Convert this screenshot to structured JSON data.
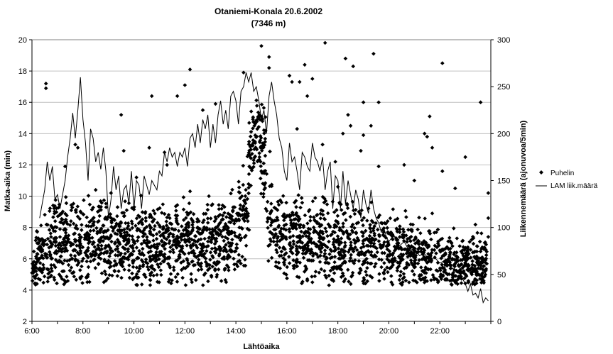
{
  "chart_data": {
    "type": "scatter",
    "title": "Otaniemi-Konala 20.6.2002",
    "subtitle": "(7346 m)",
    "xlabel": "Lähtöaika",
    "ylabel": "Matka-aika (min)",
    "y2label": "Liikennemäärä (ajonuvoa/5min)",
    "x_ticks": [
      "6:00",
      "8:00",
      "10:00",
      "12:00",
      "14:00",
      "16:00",
      "18:00",
      "20:00",
      "22:00"
    ],
    "xlim": [
      6,
      24
    ],
    "ylim": [
      2,
      20
    ],
    "y_ticks": [
      2,
      4,
      6,
      8,
      10,
      12,
      14,
      16,
      18,
      20
    ],
    "y2lim": [
      0,
      300
    ],
    "y2_ticks": [
      0,
      50,
      100,
      150,
      200,
      250,
      300
    ],
    "grid": true,
    "legend_position": "right",
    "colors": {
      "grid": "#c0c0c0",
      "points": "#000000",
      "line": "#000000",
      "frame": "#808080"
    },
    "series": [
      {
        "name": "Puhelin",
        "kind": "scatter",
        "axis": "left",
        "background_profile": [
          [
            6.0,
            5.6,
            1.1
          ],
          [
            6.5,
            6.5,
            1.3
          ],
          [
            7.0,
            7.0,
            1.6
          ],
          [
            8.0,
            7.1,
            1.6
          ],
          [
            9.0,
            7.0,
            1.5
          ],
          [
            10.0,
            6.9,
            1.5
          ],
          [
            11.0,
            7.0,
            1.5
          ],
          [
            12.0,
            7.1,
            1.5
          ],
          [
            13.0,
            7.2,
            1.5
          ],
          [
            14.0,
            7.4,
            1.5
          ],
          [
            14.4,
            9.5,
            2.0
          ],
          [
            14.75,
            14.0,
            1.5
          ],
          [
            15.0,
            13.5,
            1.5
          ],
          [
            15.3,
            9.0,
            2.0
          ],
          [
            15.6,
            7.3,
            1.5
          ],
          [
            17.0,
            7.1,
            1.5
          ],
          [
            18.0,
            7.0,
            1.5
          ],
          [
            19.0,
            6.9,
            1.5
          ],
          [
            20.0,
            6.6,
            1.4
          ],
          [
            21.0,
            6.2,
            1.2
          ],
          [
            22.0,
            5.9,
            1.1
          ],
          [
            23.0,
            5.7,
            1.0
          ],
          [
            23.85,
            5.7,
            1.0
          ]
        ],
        "outliers": [
          [
            6.55,
            17.2
          ],
          [
            6.55,
            16.9
          ],
          [
            7.7,
            13.3
          ],
          [
            7.8,
            13.1
          ],
          [
            9.5,
            15.2
          ],
          [
            9.6,
            12.9
          ],
          [
            10.7,
            16.4
          ],
          [
            11.7,
            16.4
          ],
          [
            12.2,
            18.1
          ],
          [
            12.0,
            17.1
          ],
          [
            12.7,
            15.5
          ],
          [
            13.2,
            15.9
          ],
          [
            14.3,
            17.9
          ],
          [
            15.0,
            19.6
          ],
          [
            15.3,
            18.9
          ],
          [
            15.3,
            18.2
          ],
          [
            16.1,
            17.7
          ],
          [
            16.5,
            17.3
          ],
          [
            16.8,
            16.4
          ],
          [
            16.2,
            17.3
          ],
          [
            16.7,
            18.4
          ],
          [
            17.0,
            17.5
          ],
          [
            17.5,
            19.8
          ],
          [
            17.9,
            12.2
          ],
          [
            18.3,
            18.8
          ],
          [
            18.6,
            18.3
          ],
          [
            19.0,
            16.0
          ],
          [
            19.4,
            19.1
          ],
          [
            19.6,
            16.0
          ],
          [
            19.3,
            14.5
          ],
          [
            19.0,
            13.9
          ],
          [
            20.6,
            12.0
          ],
          [
            21.4,
            14.0
          ],
          [
            21.5,
            13.8
          ],
          [
            21.6,
            15.1
          ],
          [
            21.7,
            13.1
          ],
          [
            21.7,
            8.9
          ],
          [
            21.0,
            11.0
          ],
          [
            22.1,
            18.5
          ],
          [
            22.1,
            11.6
          ],
          [
            22.6,
            10.5
          ],
          [
            23.0,
            12.5
          ],
          [
            23.6,
            16.0
          ],
          [
            23.9,
            10.2
          ],
          [
            23.9,
            8.6
          ],
          [
            23.9,
            7.4
          ],
          [
            8.9,
            4.6
          ],
          [
            17.0,
            4.5
          ],
          [
            20.1,
            4.5
          ],
          [
            16.8,
            4.7
          ],
          [
            10.6,
            13.1
          ],
          [
            11.3,
            12.0
          ],
          [
            7.3,
            11.9
          ],
          [
            8.5,
            10.4
          ],
          [
            9.1,
            10.2
          ],
          [
            11.2,
            12.8
          ],
          [
            10.1,
            11.2
          ],
          [
            16.4,
            14.3
          ],
          [
            18.4,
            15.2
          ],
          [
            18.5,
            14.5
          ],
          [
            18.2,
            14.0
          ],
          [
            17.4,
            13.3
          ],
          [
            18.9,
            12.9
          ],
          [
            19.6,
            11.9
          ],
          [
            18.0,
            10.6
          ],
          [
            6.8,
            8.0
          ],
          [
            7.1,
            7.9
          ],
          [
            22.8,
            5.3
          ],
          [
            22.3,
            5.0
          ],
          [
            22.4,
            4.6
          ],
          [
            23.3,
            5.3
          ]
        ]
      },
      {
        "name": "LAM liik.määrä",
        "kind": "line",
        "axis": "right",
        "points": [
          [
            6.3,
            110
          ],
          [
            6.5,
            140
          ],
          [
            6.6,
            170
          ],
          [
            6.7,
            150
          ],
          [
            6.8,
            165
          ],
          [
            6.9,
            130
          ],
          [
            7.0,
            135
          ],
          [
            7.1,
            120
          ],
          [
            7.2,
            135
          ],
          [
            7.3,
            150
          ],
          [
            7.4,
            175
          ],
          [
            7.5,
            195
          ],
          [
            7.6,
            222
          ],
          [
            7.7,
            195
          ],
          [
            7.8,
            225
          ],
          [
            7.9,
            260
          ],
          [
            8.0,
            215
          ],
          [
            8.1,
            190
          ],
          [
            8.2,
            150
          ],
          [
            8.3,
            205
          ],
          [
            8.4,
            195
          ],
          [
            8.5,
            170
          ],
          [
            8.6,
            180
          ],
          [
            8.7,
            162
          ],
          [
            8.8,
            185
          ],
          [
            8.9,
            160
          ],
          [
            9.0,
            110
          ],
          [
            9.1,
            130
          ],
          [
            9.2,
            165
          ],
          [
            9.3,
            140
          ],
          [
            9.4,
            155
          ],
          [
            9.5,
            120
          ],
          [
            9.6,
            140
          ],
          [
            9.7,
            145
          ],
          [
            9.8,
            125
          ],
          [
            9.9,
            160
          ],
          [
            10.0,
            120
          ],
          [
            10.1,
            150
          ],
          [
            10.2,
            145
          ],
          [
            10.3,
            120
          ],
          [
            10.4,
            155
          ],
          [
            10.5,
            145
          ],
          [
            10.6,
            135
          ],
          [
            10.7,
            150
          ],
          [
            10.8,
            145
          ],
          [
            10.9,
            140
          ],
          [
            11.0,
            160
          ],
          [
            11.1,
            155
          ],
          [
            11.2,
            180
          ],
          [
            11.3,
            170
          ],
          [
            11.4,
            185
          ],
          [
            11.5,
            175
          ],
          [
            11.6,
            180
          ],
          [
            11.7,
            165
          ],
          [
            11.8,
            180
          ],
          [
            11.9,
            175
          ],
          [
            12.0,
            185
          ],
          [
            12.1,
            165
          ],
          [
            12.2,
            195
          ],
          [
            12.3,
            200
          ],
          [
            12.4,
            185
          ],
          [
            12.5,
            210
          ],
          [
            12.6,
            190
          ],
          [
            12.7,
            215
          ],
          [
            12.8,
            205
          ],
          [
            12.9,
            220
          ],
          [
            13.0,
            185
          ],
          [
            13.1,
            210
          ],
          [
            13.2,
            190
          ],
          [
            13.3,
            220
          ],
          [
            13.4,
            235
          ],
          [
            13.5,
            210
          ],
          [
            13.6,
            225
          ],
          [
            13.7,
            205
          ],
          [
            13.8,
            240
          ],
          [
            13.9,
            245
          ],
          [
            14.0,
            235
          ],
          [
            14.1,
            210
          ],
          [
            14.2,
            245
          ],
          [
            14.3,
            250
          ],
          [
            14.4,
            265
          ],
          [
            14.5,
            255
          ],
          [
            14.6,
            265
          ],
          [
            14.7,
            245
          ],
          [
            14.8,
            250
          ],
          [
            14.9,
            235
          ],
          [
            15.0,
            215
          ],
          [
            15.1,
            225
          ],
          [
            15.2,
            200
          ],
          [
            15.3,
            240
          ],
          [
            15.4,
            255
          ],
          [
            15.5,
            235
          ],
          [
            15.6,
            220
          ],
          [
            15.7,
            195
          ],
          [
            15.8,
            185
          ],
          [
            15.9,
            160
          ],
          [
            16.0,
            150
          ],
          [
            16.1,
            190
          ],
          [
            16.2,
            170
          ],
          [
            16.3,
            175
          ],
          [
            16.4,
            160
          ],
          [
            16.5,
            140
          ],
          [
            16.6,
            180
          ],
          [
            16.7,
            175
          ],
          [
            16.8,
            165
          ],
          [
            16.9,
            160
          ],
          [
            17.0,
            190
          ],
          [
            17.1,
            175
          ],
          [
            17.2,
            170
          ],
          [
            17.3,
            160
          ],
          [
            17.4,
            175
          ],
          [
            17.5,
            140
          ],
          [
            17.6,
            160
          ],
          [
            17.7,
            170
          ],
          [
            17.8,
            120
          ],
          [
            17.9,
            155
          ],
          [
            18.0,
            150
          ],
          [
            18.1,
            120
          ],
          [
            18.2,
            160
          ],
          [
            18.3,
            125
          ],
          [
            18.4,
            150
          ],
          [
            18.5,
            135
          ],
          [
            18.6,
            120
          ],
          [
            18.7,
            140
          ],
          [
            18.8,
            130
          ],
          [
            18.9,
            110
          ],
          [
            19.0,
            140
          ],
          [
            19.1,
            125
          ],
          [
            19.2,
            115
          ],
          [
            19.3,
            140
          ],
          [
            19.4,
            120
          ],
          [
            19.5,
            110
          ],
          [
            19.6,
            105
          ],
          [
            19.7,
            95
          ],
          [
            19.8,
            100
          ],
          [
            19.9,
            90
          ],
          [
            20.0,
            85
          ],
          [
            20.2,
            92
          ],
          [
            20.4,
            80
          ],
          [
            20.6,
            85
          ],
          [
            20.8,
            75
          ],
          [
            21.0,
            78
          ],
          [
            21.2,
            70
          ],
          [
            21.4,
            72
          ],
          [
            21.6,
            65
          ],
          [
            21.8,
            68
          ],
          [
            22.0,
            62
          ],
          [
            22.2,
            65
          ],
          [
            22.4,
            58
          ],
          [
            22.6,
            55
          ],
          [
            22.8,
            50
          ],
          [
            23.0,
            40
          ],
          [
            23.1,
            32
          ],
          [
            23.2,
            40
          ],
          [
            23.3,
            28
          ],
          [
            23.4,
            30
          ],
          [
            23.5,
            25
          ],
          [
            23.6,
            35
          ],
          [
            23.7,
            20
          ],
          [
            23.8,
            25
          ],
          [
            23.9,
            22
          ]
        ]
      }
    ]
  }
}
